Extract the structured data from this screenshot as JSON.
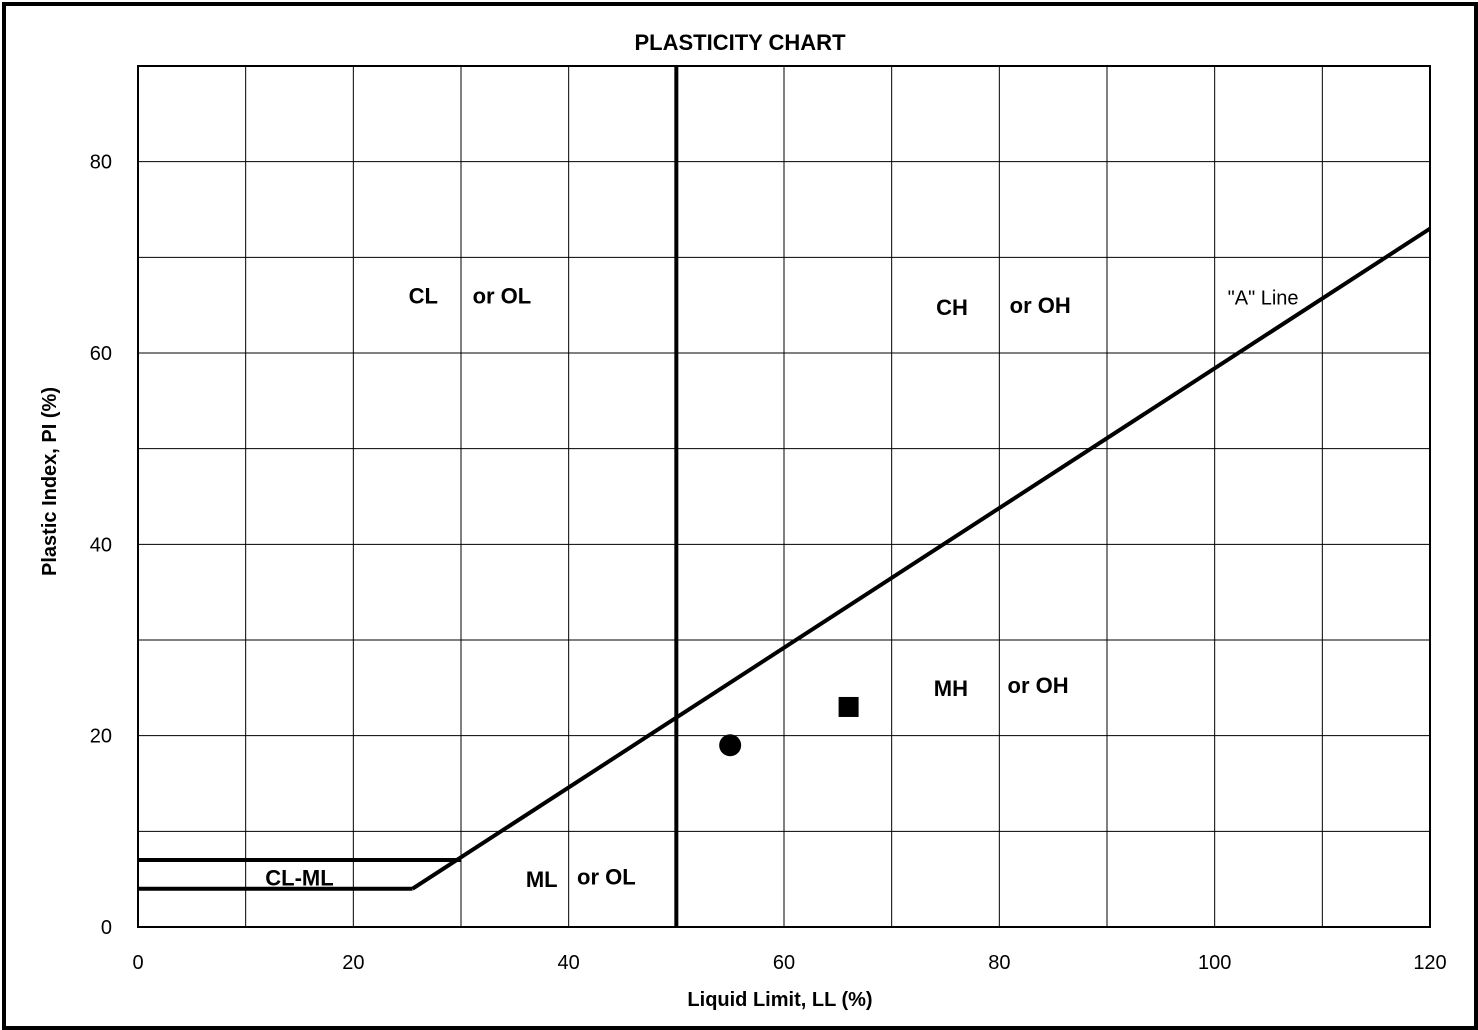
{
  "chart_data": {
    "type": "scatter",
    "title": "PLASTICITY CHART",
    "xlabel": "Liquid Limit, LL (%)",
    "ylabel": "Plastic Index, PI (%)",
    "xlim": [
      0,
      120
    ],
    "ylim": [
      0,
      90
    ],
    "x_ticks": [
      0,
      20,
      40,
      60,
      80,
      100,
      120
    ],
    "y_ticks": [
      0,
      20,
      40,
      60,
      80
    ],
    "x_gridlines": [
      10,
      20,
      30,
      40,
      50,
      60,
      70,
      80,
      90,
      100,
      110
    ],
    "y_gridlines": [
      10,
      20,
      30,
      40,
      50,
      60,
      70,
      80
    ],
    "grid": true,
    "legend": "none",
    "lines": [
      {
        "label": "\"A\" Line",
        "x": [
          25.5,
          120
        ],
        "y": [
          4,
          73
        ]
      },
      {
        "label": "",
        "x": [
          50,
          50
        ],
        "y": [
          0,
          90
        ]
      },
      {
        "label": "",
        "x": [
          0,
          30
        ],
        "y": [
          7,
          7
        ]
      },
      {
        "label": "",
        "x": [
          0,
          25.5
        ],
        "y": [
          4,
          4
        ]
      }
    ],
    "points": [
      {
        "x": 55,
        "y": 19,
        "marker": "circle"
      },
      {
        "x": 66,
        "y": 23,
        "marker": "square"
      }
    ],
    "zone_labels": [
      {
        "text": "CL",
        "x": 26.5,
        "y": 66
      },
      {
        "text": "or OL",
        "x": 33.8,
        "y": 66
      },
      {
        "text": "CH",
        "x": 75.6,
        "y": 64.8
      },
      {
        "text": "or OH",
        "x": 83.8,
        "y": 65
      },
      {
        "text": "MH",
        "x": 75.5,
        "y": 25
      },
      {
        "text": "or OH",
        "x": 83.6,
        "y": 25.3
      },
      {
        "text": "ML",
        "x": 37.5,
        "y": 5
      },
      {
        "text": "or OL",
        "x": 43.5,
        "y": 5.3
      },
      {
        "text": "CL-ML",
        "x": 15,
        "y": 5.2
      }
    ],
    "a_line_label": {
      "text": "\"A\" Line",
      "x": 104.5,
      "y": 65.8
    }
  }
}
